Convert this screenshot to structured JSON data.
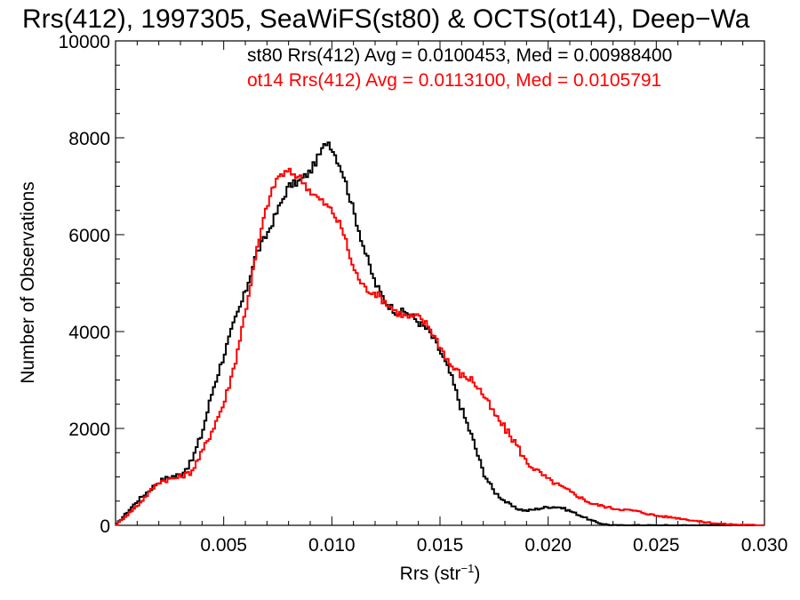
{
  "chart_data": {
    "type": "line",
    "title": "Rrs(412), 1997305, SeaWiFS(st80) & OCTS(ot14), Deep−Wa",
    "xlabel": "Rrs (str",
    "xlabel_sup": "−1",
    "xlabel_close": ")",
    "ylabel": "Number of Observations",
    "xlim": [
      0.0,
      0.03
    ],
    "ylim": [
      0,
      10000
    ],
    "x_ticks": [
      0.005,
      0.01,
      0.015,
      0.02,
      0.025,
      0.03
    ],
    "x_tick_labels": [
      "0.005",
      "0.010",
      "0.015",
      "0.020",
      "0.025",
      "0.030"
    ],
    "y_ticks": [
      0,
      2000,
      4000,
      6000,
      8000,
      10000
    ],
    "y_tick_labels": [
      "0",
      "2000",
      "4000",
      "6000",
      "8000",
      "10000"
    ],
    "grid": false,
    "legend_position": "top-right",
    "series": [
      {
        "name": "st80",
        "color": "#000000",
        "legend": "st80 Rrs(412) Avg = 0.0100453, Med = 0.00988400",
        "x": [
          0.0,
          0.001,
          0.002,
          0.0025,
          0.003,
          0.0035,
          0.004,
          0.0045,
          0.005,
          0.0055,
          0.006,
          0.0065,
          0.007,
          0.0075,
          0.008,
          0.0085,
          0.009,
          0.0095,
          0.0098,
          0.01,
          0.0105,
          0.011,
          0.0115,
          0.012,
          0.0125,
          0.013,
          0.0135,
          0.014,
          0.0145,
          0.015,
          0.0155,
          0.016,
          0.0165,
          0.017,
          0.0175,
          0.018,
          0.0185,
          0.019,
          0.02,
          0.0205,
          0.021,
          0.0215,
          0.022,
          0.0225,
          0.023,
          0.024,
          0.026,
          0.03
        ],
        "y": [
          0,
          500,
          900,
          1000,
          1050,
          1300,
          1900,
          2800,
          3500,
          4200,
          4800,
          5600,
          6000,
          6500,
          7000,
          7100,
          7300,
          7700,
          7950,
          7800,
          7300,
          6500,
          5700,
          5000,
          4600,
          4400,
          4400,
          4200,
          4000,
          3600,
          3100,
          2400,
          1800,
          1100,
          700,
          500,
          350,
          300,
          380,
          380,
          300,
          200,
          100,
          30,
          0,
          0,
          0,
          0
        ]
      },
      {
        "name": "ot14",
        "color": "#ff0000",
        "legend": "ot14 Rrs(412) Avg = 0.0113100, Med = 0.0105791",
        "x": [
          0.0,
          0.001,
          0.002,
          0.0025,
          0.003,
          0.0035,
          0.004,
          0.0045,
          0.005,
          0.0055,
          0.006,
          0.0065,
          0.007,
          0.0075,
          0.008,
          0.0085,
          0.009,
          0.0095,
          0.01,
          0.0105,
          0.011,
          0.0115,
          0.012,
          0.0125,
          0.013,
          0.0135,
          0.014,
          0.0145,
          0.015,
          0.0155,
          0.016,
          0.0165,
          0.017,
          0.0175,
          0.018,
          0.0185,
          0.019,
          0.02,
          0.021,
          0.022,
          0.023,
          0.024,
          0.025,
          0.026,
          0.027,
          0.028,
          0.029,
          0.03
        ],
        "y": [
          0,
          400,
          900,
          950,
          1000,
          1100,
          1500,
          2000,
          2500,
          3300,
          4400,
          5600,
          6600,
          7200,
          7300,
          7200,
          6900,
          6700,
          6500,
          6100,
          5300,
          4900,
          4800,
          4600,
          4400,
          4300,
          4300,
          4100,
          3700,
          3300,
          3100,
          3000,
          2700,
          2300,
          2000,
          1700,
          1300,
          950,
          700,
          450,
          350,
          300,
          200,
          150,
          80,
          30,
          10,
          0
        ]
      }
    ]
  }
}
